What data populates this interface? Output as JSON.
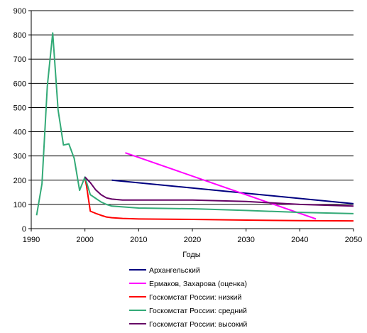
{
  "chart_data": {
    "type": "line",
    "title": "",
    "xlabel": "Годы",
    "ylabel": "",
    "xlim": [
      1990,
      2050
    ],
    "ylim": [
      0,
      900
    ],
    "x_ticks": [
      1990,
      2000,
      2010,
      2020,
      2030,
      2040,
      2050
    ],
    "y_ticks": [
      0,
      100,
      200,
      300,
      400,
      500,
      600,
      700,
      800,
      900
    ],
    "grid": "horizontal",
    "legend_position": "bottom",
    "series": [
      {
        "name": "Архангельский",
        "color": "#000080",
        "points": [
          [
            2005,
            200
          ],
          [
            2050,
            103
          ]
        ]
      },
      {
        "name": "Ермаков, Захарова (оценка)",
        "color": "#ff00ff",
        "points": [
          [
            2007.5,
            313
          ],
          [
            2043,
            40
          ]
        ]
      },
      {
        "name": "Госкомстат России:  низкий",
        "color": "#ff0000",
        "points": [
          [
            2000,
            210
          ],
          [
            2000.3,
            175
          ],
          [
            2001,
            72
          ],
          [
            2002,
            63
          ],
          [
            2003,
            55
          ],
          [
            2004,
            48
          ],
          [
            2005,
            45
          ],
          [
            2007,
            42
          ],
          [
            2010,
            40
          ],
          [
            2020,
            38
          ],
          [
            2030,
            35
          ],
          [
            2040,
            33
          ],
          [
            2050,
            32
          ]
        ]
      },
      {
        "name": "Госкомстат России:  средний",
        "color": "#33aa77",
        "points": [
          [
            1991,
            55
          ],
          [
            1992,
            185
          ],
          [
            1993,
            590
          ],
          [
            1994,
            808
          ],
          [
            1995,
            490
          ],
          [
            1996,
            345
          ],
          [
            1997,
            350
          ],
          [
            1998,
            290
          ],
          [
            1999,
            158
          ],
          [
            2000,
            213
          ],
          [
            2001,
            140
          ],
          [
            2002,
            125
          ],
          [
            2003,
            110
          ],
          [
            2004,
            100
          ],
          [
            2005,
            93
          ],
          [
            2010,
            85
          ],
          [
            2020,
            82
          ],
          [
            2030,
            75
          ],
          [
            2040,
            67
          ],
          [
            2050,
            62
          ]
        ]
      },
      {
        "name": "Госкомстат России:  высокий",
        "color": "#660066",
        "points": [
          [
            2000,
            213
          ],
          [
            2001,
            190
          ],
          [
            2002,
            160
          ],
          [
            2003,
            140
          ],
          [
            2004,
            127
          ],
          [
            2005,
            122
          ],
          [
            2007,
            118
          ],
          [
            2010,
            118
          ],
          [
            2020,
            118
          ],
          [
            2030,
            112
          ],
          [
            2040,
            100
          ],
          [
            2050,
            93
          ]
        ]
      }
    ]
  }
}
